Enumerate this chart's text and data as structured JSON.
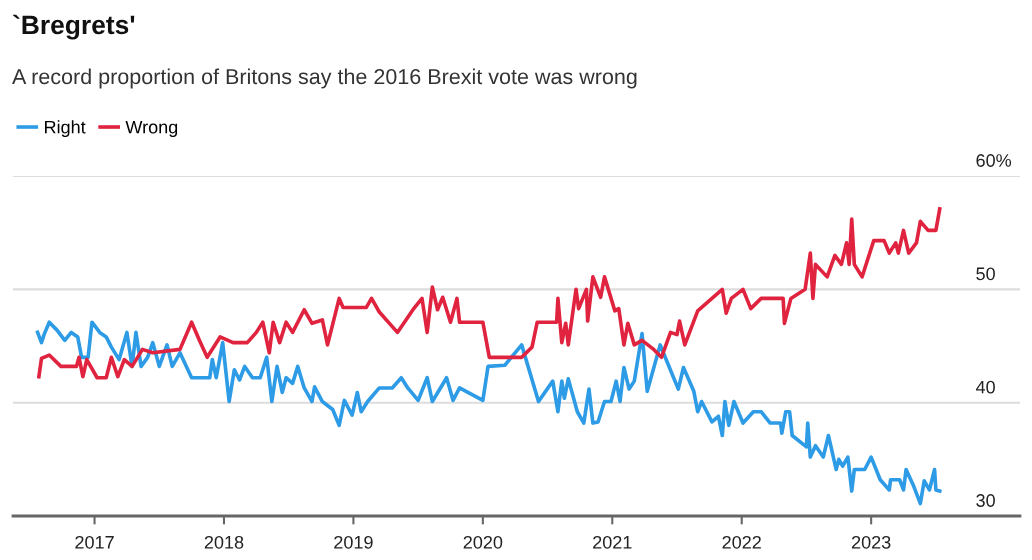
{
  "chart_data": {
    "type": "line",
    "title": "`Bregrets'",
    "subtitle": "A record proportion of Britons say the 2016 Brexit vote was wrong",
    "series": [
      {
        "name": "Right",
        "color": "#2d9be6",
        "x": [
          2016.56,
          2016.59,
          2016.61,
          2016.65,
          2016.71,
          2016.77,
          2016.82,
          2016.87,
          2016.9,
          2016.95,
          2016.98,
          2017.04,
          2017.09,
          2017.13,
          2017.19,
          2017.25,
          2017.29,
          2017.32,
          2017.36,
          2017.41,
          2017.45,
          2017.5,
          2017.56,
          2017.6,
          2017.66,
          2017.75,
          2017.89,
          2017.91,
          2017.94,
          2017.99,
          2018.04,
          2018.08,
          2018.12,
          2018.16,
          2018.22,
          2018.28,
          2018.33,
          2018.37,
          2018.41,
          2018.45,
          2018.48,
          2018.53,
          2018.57,
          2018.62,
          2018.68,
          2018.7,
          2018.76,
          2018.84,
          2018.89,
          2018.93,
          2018.99,
          2019.03,
          2019.06,
          2019.11,
          2019.2,
          2019.3,
          2019.37,
          2019.42,
          2019.5,
          2019.57,
          2019.61,
          2019.72,
          2019.77,
          2019.82,
          2020.0,
          2020.04,
          2020.17,
          2020.3,
          2020.43,
          2020.54,
          2020.58,
          2020.61,
          2020.63,
          2020.66,
          2020.73,
          2020.78,
          2020.82,
          2020.85,
          2020.89,
          2020.94,
          2020.99,
          2021.03,
          2021.06,
          2021.09,
          2021.13,
          2021.17,
          2021.19,
          2021.23,
          2021.27,
          2021.37,
          2021.42,
          2021.51,
          2021.55,
          2021.63,
          2021.66,
          2021.69,
          2021.77,
          2021.82,
          2021.85,
          2021.87,
          2021.9,
          2021.94,
          2022.01,
          2022.09,
          2022.15,
          2022.22,
          2022.3,
          2022.31,
          2022.34,
          2022.37,
          2022.39,
          2022.5,
          2022.51,
          2022.53,
          2022.57,
          2022.63,
          2022.67,
          2022.73,
          2022.75,
          2022.78,
          2022.82,
          2022.85,
          2022.87,
          2022.95,
          2023.0,
          2023.07,
          2023.14,
          2023.15,
          2023.22,
          2023.25,
          2023.27,
          2023.33,
          2023.38,
          2023.41,
          2023.45,
          2023.49,
          2023.5,
          2023.53
        ],
        "values": [
          46.2,
          45.3,
          46.0,
          47.1,
          46.4,
          45.5,
          46.2,
          45.8,
          44.0,
          44.0,
          47.1,
          46.2,
          45.8,
          44.9,
          43.8,
          46.2,
          43.2,
          46.2,
          43.2,
          44.0,
          45.3,
          43.2,
          45.1,
          43.2,
          44.4,
          42.2,
          42.2,
          43.8,
          42.2,
          45.3,
          40.1,
          42.9,
          42.0,
          43.2,
          42.2,
          42.2,
          44.0,
          40.1,
          43.2,
          40.9,
          42.2,
          41.7,
          43.2,
          41.3,
          40.1,
          41.4,
          40.1,
          39.4,
          38.0,
          40.2,
          38.9,
          40.9,
          39.2,
          40.1,
          41.3,
          41.3,
          42.2,
          41.3,
          40.2,
          42.2,
          40.1,
          42.2,
          40.2,
          41.3,
          40.2,
          43.2,
          43.3,
          45.1,
          40.1,
          41.9,
          39.2,
          41.9,
          40.4,
          42.1,
          39.2,
          38.2,
          41.2,
          38.2,
          38.3,
          40.1,
          40.1,
          41.9,
          40.1,
          43.1,
          41.2,
          41.9,
          43.3,
          46.1,
          41.0,
          45.1,
          43.7,
          41.2,
          43.1,
          41.0,
          39.2,
          40.1,
          38.3,
          38.8,
          37.1,
          40.1,
          38.0,
          40.1,
          38.2,
          39.2,
          39.2,
          38.2,
          38.2,
          37.3,
          39.2,
          39.2,
          37.1,
          36.1,
          38.2,
          35.2,
          36.2,
          35.2,
          37.1,
          34.1,
          35.0,
          34.4,
          35.2,
          32.2,
          34.1,
          34.1,
          35.2,
          33.2,
          32.3,
          33.2,
          33.2,
          32.3,
          34.1,
          32.6,
          31.1,
          33.1,
          32.3,
          34.1,
          32.3,
          32.2
        ]
      },
      {
        "name": "Wrong",
        "color": "#e0233f",
        "x": [
          2016.57,
          2016.59,
          2016.65,
          2016.74,
          2016.86,
          2016.88,
          2016.91,
          2016.94,
          2017.02,
          2017.09,
          2017.13,
          2017.18,
          2017.23,
          2017.29,
          2017.37,
          2017.45,
          2017.66,
          2017.75,
          2017.81,
          2017.87,
          2017.97,
          2018.07,
          2018.18,
          2018.25,
          2018.3,
          2018.35,
          2018.38,
          2018.43,
          2018.48,
          2018.53,
          2018.62,
          2018.68,
          2018.76,
          2018.8,
          2018.89,
          2018.92,
          2019.1,
          2019.14,
          2019.2,
          2019.34,
          2019.46,
          2019.53,
          2019.57,
          2019.61,
          2019.65,
          2019.69,
          2019.75,
          2019.8,
          2019.82,
          2020.0,
          2020.05,
          2020.3,
          2020.38,
          2020.42,
          2020.57,
          2020.58,
          2020.61,
          2020.64,
          2020.66,
          2020.72,
          2020.74,
          2020.8,
          2020.81,
          2020.85,
          2020.91,
          2020.94,
          2021.02,
          2021.05,
          2021.09,
          2021.12,
          2021.17,
          2021.23,
          2021.32,
          2021.38,
          2021.45,
          2021.5,
          2021.52,
          2021.56,
          2021.66,
          2021.77,
          2021.85,
          2021.88,
          2021.92,
          2022.01,
          2022.07,
          2022.15,
          2022.32,
          2022.33,
          2022.38,
          2022.49,
          2022.53,
          2022.55,
          2022.57,
          2022.66,
          2022.72,
          2022.77,
          2022.81,
          2022.83,
          2022.85,
          2022.87,
          2022.93,
          2023.02,
          2023.1,
          2023.14,
          2023.19,
          2023.21,
          2023.25,
          2023.29,
          2023.35,
          2023.38,
          2023.44,
          2023.5,
          2023.53
        ],
        "values": [
          42.3,
          43.9,
          44.2,
          43.2,
          43.2,
          44.0,
          42.3,
          43.8,
          42.2,
          42.2,
          44.0,
          42.3,
          43.8,
          43.2,
          44.7,
          44.4,
          44.7,
          47.1,
          45.5,
          44.0,
          45.8,
          45.3,
          45.3,
          46.2,
          47.1,
          44.4,
          47.1,
          45.3,
          47.1,
          46.2,
          48.2,
          47.0,
          47.3,
          45.1,
          49.2,
          48.4,
          48.4,
          49.2,
          48.0,
          46.2,
          48.2,
          49.2,
          46.2,
          50.2,
          48.2,
          49.3,
          47.1,
          49.2,
          47.1,
          47.1,
          44.0,
          44.0,
          44.9,
          47.1,
          47.1,
          49.2,
          45.3,
          47.0,
          45.1,
          50.0,
          48.3,
          50.0,
          47.2,
          51.1,
          49.3,
          51.1,
          48.1,
          48.3,
          45.1,
          47.0,
          45.1,
          45.5,
          44.7,
          44.0,
          46.2,
          46.0,
          47.2,
          45.1,
          48.1,
          49.2,
          50.0,
          47.9,
          49.2,
          50.0,
          48.3,
          49.2,
          49.2,
          47.0,
          49.2,
          50.0,
          53.2,
          49.2,
          52.2,
          51.1,
          53.0,
          52.2,
          54.1,
          52.2,
          56.2,
          52.2,
          51.1,
          54.3,
          54.3,
          53.2,
          54.1,
          53.2,
          55.2,
          53.2,
          54.1,
          56.0,
          55.2,
          55.2,
          57.1
        ]
      }
    ],
    "xlim": [
      2016.37,
      2024.15
    ],
    "xticks": [
      2017,
      2018,
      2019,
      2020,
      2021,
      2022,
      2023
    ],
    "ylim": [
      30,
      60
    ],
    "yticks": [
      {
        "value": 30,
        "label": "30"
      },
      40,
      50,
      {
        "value": 60,
        "label": "60%"
      }
    ],
    "grid": "y",
    "legend": "top left",
    "line_style": "solid"
  }
}
